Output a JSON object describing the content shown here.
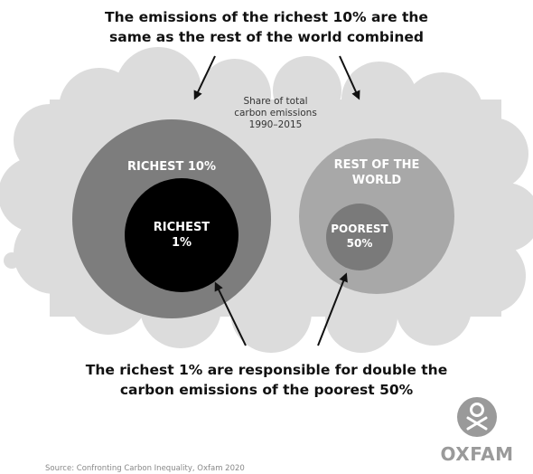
{
  "headline_top": {
    "line1": "The emissions of the richest 10% are the",
    "line2": "same as the rest of the world combined"
  },
  "subtitle": {
    "line1": "Share of total",
    "line2": "carbon emissions",
    "line3": "1990–2015"
  },
  "bubbles": {
    "richest_10": {
      "label": "RICHEST 10%"
    },
    "richest_1": {
      "line1": "RICHEST",
      "line2": "1%"
    },
    "rest_of_world": {
      "line1": "REST OF THE",
      "line2": "WORLD"
    },
    "poorest_50": {
      "line1": "POOREST",
      "line2": "50%"
    }
  },
  "headline_bottom": {
    "line1": "The richest 1% are responsible for double the",
    "line2": "carbon emissions of the poorest 50%"
  },
  "footer": {
    "source": "Source: Confronting Carbon Inequality, Oxfam 2020",
    "logo_text": "OXFAM"
  },
  "colors": {
    "cloud": "#dcdcdc",
    "richest_10": "#7d7d7d",
    "richest_1": "#000000",
    "rest_of_world": "#a8a8a8",
    "poorest_50": "#7a7a7a",
    "text": "#111111",
    "logo": "#9a9a9a"
  }
}
